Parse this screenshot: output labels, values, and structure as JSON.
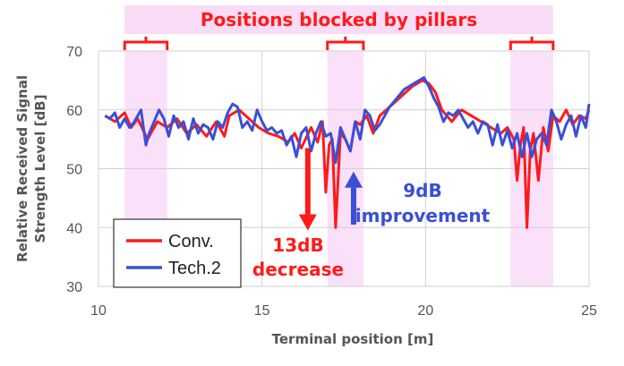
{
  "chart_data": {
    "type": "line",
    "xlabel": "Terminal position [m]",
    "ylabel": "Relative Received Signal Strength Level [dB]",
    "ylabel_lines": [
      "Relative Received Signal",
      "Strength Level [dB]"
    ],
    "xlim": [
      10,
      25
    ],
    "ylim": [
      30,
      70
    ],
    "x_ticks": [
      10,
      15,
      20,
      25
    ],
    "y_ticks": [
      30,
      40,
      50,
      60,
      70
    ],
    "grid": true,
    "legend_placement": "bottom-left",
    "banner": "Positions blocked by pillars",
    "blocked_regions": [
      [
        10.8,
        12.1
      ],
      [
        17.0,
        18.1
      ],
      [
        22.6,
        23.9
      ]
    ],
    "annotations": [
      {
        "text": [
          "13dB",
          "decrease"
        ],
        "color": "#ff1a1a",
        "arrow_x": 16.4,
        "arrow_from": 53.5,
        "arrow_to": 39.5,
        "direction": "down"
      },
      {
        "text": [
          "9dB",
          "improvement"
        ],
        "color": "#3a4fd6",
        "arrow_x": 17.8,
        "arrow_from": 40.5,
        "arrow_to": 49.5,
        "direction": "up"
      }
    ],
    "series": [
      {
        "name": "Conv.",
        "color": "#ff1a1a",
        "x": [
          10.2,
          10.5,
          10.8,
          11.0,
          11.2,
          11.5,
          11.8,
          12.1,
          12.4,
          12.7,
          13.0,
          13.3,
          13.6,
          13.85,
          14.0,
          14.3,
          14.6,
          14.9,
          15.2,
          15.5,
          15.8,
          16.0,
          16.2,
          16.5,
          16.7,
          16.85,
          16.95,
          17.05,
          17.15,
          17.25,
          17.4,
          17.55,
          17.7,
          17.85,
          18.0,
          18.2,
          18.4,
          18.6,
          18.8,
          19.0,
          19.3,
          19.6,
          19.9,
          20.1,
          20.3,
          20.5,
          20.8,
          21.1,
          21.4,
          21.7,
          22.0,
          22.3,
          22.5,
          22.7,
          22.8,
          22.9,
          23.0,
          23.1,
          23.2,
          23.3,
          23.45,
          23.6,
          23.75,
          23.9,
          24.1,
          24.3,
          24.5,
          24.7,
          24.9,
          25.0
        ],
        "y": [
          59,
          58,
          59.5,
          57,
          58.5,
          55,
          58,
          57,
          58.5,
          56,
          57.5,
          55.5,
          58,
          55.5,
          59,
          60,
          58.5,
          57,
          56,
          55.5,
          54.5,
          56,
          53.5,
          57,
          54.5,
          58,
          46,
          54,
          55,
          40,
          56,
          55,
          53,
          58,
          57.5,
          59,
          56,
          59,
          60,
          61,
          62.5,
          64,
          65,
          64.5,
          63,
          60,
          58,
          60,
          59,
          58,
          57,
          56,
          57,
          55,
          48,
          54,
          57,
          40,
          53,
          56,
          48,
          57,
          53,
          59,
          58,
          60,
          57.5,
          59,
          58.5,
          60
        ]
      },
      {
        "name": "Tech.2",
        "color": "#3a4fd6",
        "x": [
          10.2,
          10.35,
          10.5,
          10.65,
          10.8,
          10.95,
          11.1,
          11.2,
          11.3,
          11.45,
          11.55,
          11.7,
          11.85,
          12.0,
          12.15,
          12.3,
          12.45,
          12.6,
          12.75,
          12.9,
          13.05,
          13.2,
          13.35,
          13.5,
          13.65,
          13.8,
          13.95,
          14.1,
          14.25,
          14.4,
          14.55,
          14.7,
          14.85,
          15.0,
          15.15,
          15.3,
          15.45,
          15.6,
          15.75,
          15.9,
          16.05,
          16.2,
          16.35,
          16.5,
          16.65,
          16.8,
          16.95,
          17.1,
          17.25,
          17.4,
          17.55,
          17.7,
          17.85,
          18.0,
          18.15,
          18.3,
          18.45,
          18.6,
          18.75,
          18.9,
          19.05,
          19.2,
          19.35,
          19.5,
          19.65,
          19.8,
          19.95,
          20.1,
          20.25,
          20.4,
          20.55,
          20.7,
          20.85,
          21.0,
          21.15,
          21.3,
          21.45,
          21.6,
          21.75,
          21.9,
          22.05,
          22.2,
          22.35,
          22.5,
          22.65,
          22.8,
          22.95,
          23.1,
          23.25,
          23.4,
          23.55,
          23.7,
          23.85,
          24.0,
          24.15,
          24.3,
          24.45,
          24.6,
          24.75,
          24.9,
          25.0
        ],
        "y": [
          59,
          58.5,
          59.5,
          57,
          58.5,
          57,
          58,
          59,
          60,
          54,
          56,
          58,
          60,
          58.5,
          55.5,
          59,
          57,
          58,
          55,
          58.5,
          56,
          57.5,
          57,
          55,
          58,
          57,
          59.5,
          61,
          60.5,
          57,
          58,
          56.5,
          60,
          58,
          56.5,
          57,
          56,
          56.5,
          54,
          55.5,
          52,
          56,
          57,
          53,
          56,
          58,
          55.5,
          56,
          51,
          57,
          55,
          53,
          58,
          55,
          60,
          59,
          56.5,
          57.5,
          59,
          60.5,
          61.5,
          62.5,
          63.5,
          64,
          64.5,
          65,
          65.5,
          64,
          62,
          60.5,
          58,
          59.5,
          59,
          60,
          58.5,
          57,
          58,
          56,
          58,
          57.5,
          54,
          57.5,
          54,
          56.5,
          53.5,
          56,
          52,
          56,
          52,
          55,
          56,
          54,
          60,
          58,
          55,
          57.5,
          59,
          55.5,
          59,
          57,
          61
        ]
      }
    ]
  }
}
